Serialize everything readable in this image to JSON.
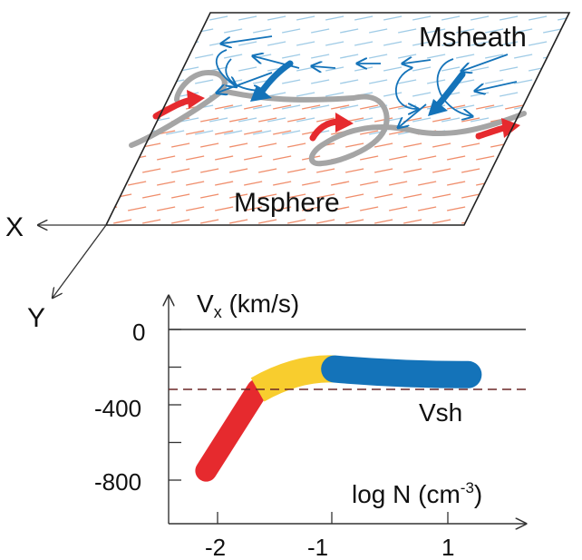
{
  "figure": {
    "upper": {
      "region_top_label": "Msheath",
      "region_bottom_label": "Msphere",
      "axis_x_label": "X",
      "axis_y_label": "Y"
    },
    "lower": {
      "y_axis_title": "V",
      "y_axis_subscript": "x",
      "y_axis_units": " (km/s)",
      "x_axis_title": "log N (cm",
      "x_axis_superscript": "-3",
      "x_axis_close": ")",
      "y_ticks": [
        "0",
        "-400",
        "-800"
      ],
      "x_ticks": [
        "-2",
        "-1",
        "1"
      ],
      "reference_label": "Vsh"
    }
  },
  "chart_data": {
    "type": "line",
    "x_label": "log N (cm-3)",
    "y_label": "Vx (km/s)",
    "reference_line": {
      "label": "Vsh",
      "y": -300
    },
    "series": [
      {
        "color": "#e62a2e",
        "x": [
          -2.1,
          -1.9,
          -1.65
        ],
        "y": [
          -750,
          -560,
          -320
        ]
      },
      {
        "color": "#f8cd2e",
        "x": [
          -1.65,
          -1.3,
          -0.95
        ],
        "y": [
          -320,
          -200,
          -210
        ]
      },
      {
        "color": "#1473b9",
        "x": [
          -0.95,
          0.2,
          1.35
        ],
        "y": [
          -210,
          -240,
          -240
        ]
      }
    ],
    "colors": {
      "red": "#e62a2e",
      "yellow": "#f8cd2e",
      "blue": "#1473b9",
      "boundary": "#a5a5a5",
      "light_blue_hatch": "#9fcbe6",
      "salmon_hatch": "#f08d6b"
    }
  }
}
